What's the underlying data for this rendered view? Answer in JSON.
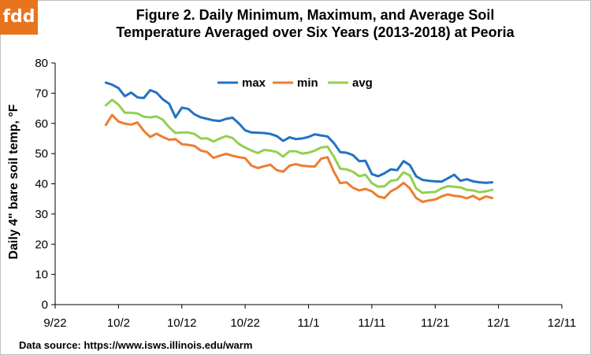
{
  "logo": "fdd",
  "title_line1": "Figure 2. Daily Minimum, Maximum, and Average Soil",
  "title_line2": "Temperature Averaged over Six Years (2013-2018) at Peoria",
  "source": "Data source: https://www.isws.illinois.edu/warm",
  "colors": {
    "max": "#2272c3",
    "min": "#ed7d31",
    "avg": "#92d050"
  },
  "chart_data": {
    "type": "line",
    "title": "Figure 2. Daily Minimum, Maximum, and Average Soil Temperature Averaged over Six Years (2013-2018) at Peoria",
    "xlabel": "",
    "ylabel": "Daily 4\" bare soil temp, °F",
    "xlim": [
      "9/22",
      "12/11"
    ],
    "ylim": [
      0,
      80
    ],
    "x_tick_labels": [
      "9/22",
      "10/2",
      "10/12",
      "10/22",
      "11/1",
      "11/11",
      "11/21",
      "12/1",
      "12/11"
    ],
    "y_ticks": [
      0,
      10,
      20,
      30,
      40,
      50,
      60,
      70,
      80
    ],
    "grid": false,
    "legend": "top-center",
    "x_start": "9/30",
    "x_end": "11/29",
    "series": [
      {
        "name": "max",
        "values": [
          73.5,
          72.8,
          71.7,
          69.0,
          70.2,
          68.6,
          68.4,
          71.0,
          70.2,
          68.0,
          66.5,
          62.0,
          65.2,
          64.8,
          63.0,
          62.0,
          61.5,
          61.0,
          60.8,
          61.5,
          61.9,
          60.0,
          57.7,
          57.0,
          56.9,
          56.8,
          56.5,
          55.8,
          54.2,
          55.4,
          54.8,
          55.0,
          55.5,
          56.4,
          56.0,
          55.7,
          53.5,
          50.5,
          50.3,
          49.5,
          47.5,
          47.6,
          43.2,
          42.5,
          43.5,
          44.8,
          44.5,
          47.5,
          46.2,
          42.5,
          41.3,
          41.0,
          40.8,
          40.7,
          41.8,
          43.0,
          41.0,
          41.5,
          40.8,
          40.5,
          40.3,
          40.5
        ]
      },
      {
        "name": "min",
        "values": [
          59.5,
          62.8,
          60.6,
          59.9,
          59.6,
          60.3,
          57.5,
          55.5,
          56.6,
          55.5,
          54.6,
          54.8,
          53.1,
          52.9,
          52.5,
          51.0,
          50.5,
          48.6,
          49.3,
          49.9,
          49.3,
          48.8,
          48.5,
          46.0,
          45.2,
          45.8,
          46.3,
          44.5,
          44.0,
          46.0,
          46.5,
          46.0,
          45.8,
          45.7,
          48.3,
          48.8,
          44.0,
          40.2,
          40.5,
          38.7,
          37.8,
          38.3,
          37.5,
          35.8,
          35.3,
          37.5,
          38.6,
          40.3,
          38.5,
          35.3,
          34.0,
          34.5,
          34.8,
          35.8,
          36.5,
          36.0,
          35.8,
          35.2,
          36.0,
          34.8,
          35.8,
          35.3
        ]
      },
      {
        "name": "avg",
        "values": [
          66.0,
          67.8,
          66.2,
          63.5,
          63.5,
          63.3,
          62.2,
          62.0,
          62.3,
          61.2,
          58.7,
          56.8,
          57.0,
          57.0,
          56.5,
          55.0,
          55.0,
          54.0,
          55.0,
          55.8,
          55.2,
          53.2,
          52.0,
          51.0,
          50.2,
          51.2,
          51.0,
          50.5,
          49.0,
          50.8,
          50.8,
          50.0,
          50.3,
          51.0,
          52.0,
          52.3,
          49.0,
          45.0,
          44.8,
          44.0,
          42.5,
          43.0,
          40.2,
          39.0,
          39.2,
          41.0,
          41.3,
          43.8,
          42.8,
          38.5,
          37.0,
          37.2,
          37.3,
          38.5,
          39.2,
          39.0,
          38.8,
          38.0,
          37.8,
          37.2,
          37.5,
          38.0
        ]
      }
    ]
  }
}
